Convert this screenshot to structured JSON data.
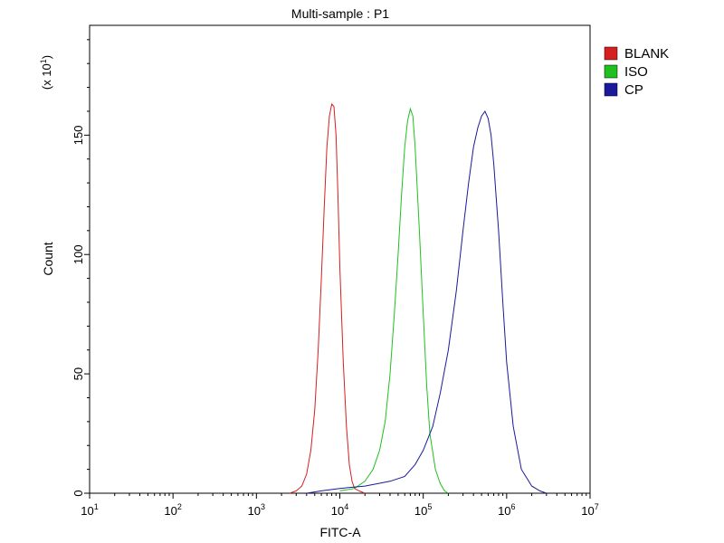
{
  "chart_data": {
    "type": "line",
    "title": "Multi-sample : P1",
    "xlabel": "FITC-A",
    "ylabel": "Count",
    "y_multiplier_label": "(x 10",
    "y_multiplier_exp": "1",
    "y_multiplier_close": ")",
    "x_scale": "log",
    "xlim": [
      10,
      10000000
    ],
    "ylim": [
      0,
      196
    ],
    "y_ticks": [
      0,
      50,
      100,
      150
    ],
    "y_tick_labels": [
      "0",
      "50",
      "100",
      "150"
    ],
    "x_ticks": [
      10,
      100,
      1000,
      10000,
      100000,
      1000000,
      10000000
    ],
    "x_tick_labels": [
      {
        "base": "10",
        "exp": "1"
      },
      {
        "base": "10",
        "exp": "2"
      },
      {
        "base": "10",
        "exp": "3"
      },
      {
        "base": "10",
        "exp": "4"
      },
      {
        "base": "10",
        "exp": "5"
      },
      {
        "base": "10",
        "exp": "6"
      },
      {
        "base": "10",
        "exp": "7"
      }
    ],
    "grid": false,
    "legend_position": "top-right outside",
    "series": [
      {
        "name": "BLANK",
        "color": "#d42020",
        "x": [
          2500,
          3000,
          3500,
          4000,
          4500,
          5000,
          5500,
          6000,
          6500,
          7000,
          7500,
          8000,
          8500,
          9000,
          9500,
          10000,
          11000,
          12000,
          13000,
          14000,
          15000,
          17000,
          20000
        ],
        "y": [
          0,
          1,
          3,
          8,
          18,
          35,
          60,
          90,
          120,
          145,
          158,
          163,
          162,
          150,
          125,
          95,
          55,
          28,
          12,
          5,
          2,
          1,
          0
        ]
      },
      {
        "name": "ISO",
        "color": "#20c020",
        "x": [
          10000,
          15000,
          20000,
          25000,
          30000,
          35000,
          40000,
          45000,
          50000,
          55000,
          60000,
          65000,
          70000,
          75000,
          80000,
          90000,
          100000,
          110000,
          120000,
          140000,
          160000,
          180000,
          200000
        ],
        "y": [
          1,
          2,
          5,
          10,
          18,
          30,
          50,
          75,
          100,
          125,
          145,
          156,
          161,
          158,
          145,
          110,
          75,
          45,
          25,
          10,
          4,
          1,
          0
        ]
      },
      {
        "name": "CP",
        "color": "#1a1a9a",
        "x": [
          4000,
          6000,
          10000,
          20000,
          40000,
          60000,
          80000,
          100000,
          130000,
          160000,
          200000,
          250000,
          300000,
          350000,
          400000,
          450000,
          500000,
          550000,
          600000,
          650000,
          700000,
          800000,
          900000,
          1000000,
          1200000,
          1500000,
          2000000,
          2500000,
          3000000
        ],
        "y": [
          0,
          1,
          2,
          3,
          5,
          7,
          12,
          18,
          28,
          42,
          60,
          85,
          110,
          130,
          145,
          153,
          158,
          160,
          157,
          150,
          138,
          110,
          80,
          55,
          28,
          10,
          3,
          1,
          0
        ]
      }
    ]
  }
}
